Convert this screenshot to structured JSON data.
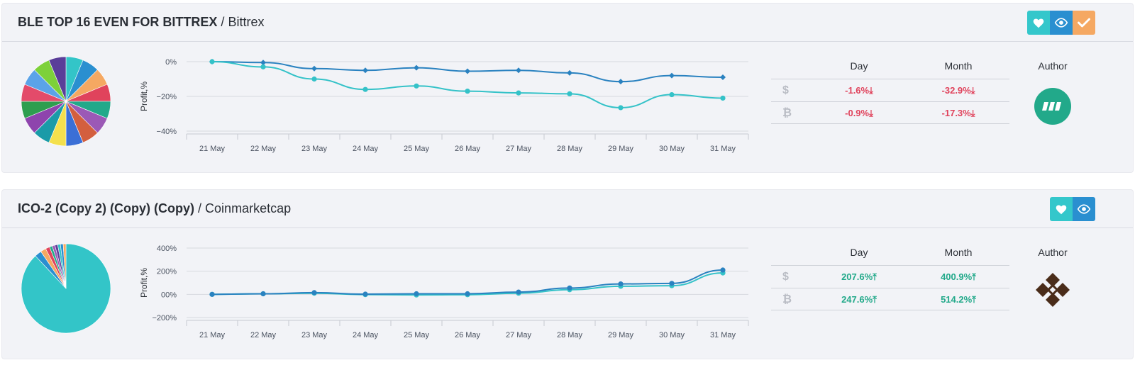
{
  "cards": [
    {
      "title": "BLE TOP 16 EVEN FOR BITTREX",
      "separator": "/",
      "exchange": "Bittrex",
      "buttons": [
        "like",
        "watch",
        "check"
      ],
      "pie_colors": [
        "#33c5c8",
        "#2a8fd0",
        "#f5a862",
        "#e0435c",
        "#22a98a",
        "#9b59b6",
        "#d35f3f",
        "#3b6fd6",
        "#f4e04d",
        "#1a9ba8",
        "#8e44ad",
        "#2e9e4f",
        "#e34b6a",
        "#5ba3e8",
        "#7dd13a",
        "#5a3e99"
      ],
      "stats": {
        "headers": {
          "day": "Day",
          "month": "Month",
          "author": "Author"
        },
        "usd_symbol": "$",
        "btc_symbol": "₿",
        "usd_day": "-1.6%⤓",
        "usd_month": "-32.9%⤓",
        "btc_day": "-0.9%⤓",
        "btc_month": "-17.3%⤓",
        "trend": "neg"
      },
      "avatar_color": "#22a98a",
      "chart_data": {
        "type": "line",
        "ylabel": "Profit,%",
        "x": [
          "21 May",
          "22 May",
          "23 May",
          "24 May",
          "25 May",
          "26 May",
          "27 May",
          "28 May",
          "29 May",
          "30 May",
          "31 May"
        ],
        "y_ticks": [
          0,
          -20,
          -40
        ],
        "y_tick_labels": [
          "0%",
          "−20%",
          "−40%"
        ],
        "ylim": [
          -40,
          0
        ],
        "series": [
          {
            "color": "#2a82c0",
            "values": [
              0,
              -0.5,
              -4,
              -5,
              -3.5,
              -5.5,
              -5,
              -6.5,
              -11.5,
              -8,
              -9
            ]
          },
          {
            "color": "#34c2c8",
            "values": [
              0,
              -3,
              -10,
              -16,
              -14,
              -17,
              -18,
              -18.5,
              -26.5,
              -19,
              -21
            ]
          }
        ]
      }
    },
    {
      "title": "ICO-2 (Copy 2) (Copy) (Copy)",
      "separator": "/",
      "exchange": "Coinmarketcap",
      "buttons": [
        "like",
        "watch"
      ],
      "pie_colors": [
        "#33c5c8",
        "#2a8fd0",
        "#f5a862",
        "#e0435c",
        "#22a98a",
        "#9b59b6",
        "#5a3e99"
      ],
      "stats": {
        "headers": {
          "day": "Day",
          "month": "Month",
          "author": "Author"
        },
        "usd_symbol": "$",
        "btc_symbol": "₿",
        "usd_day": "207.6%⤒",
        "usd_month": "400.9%⤒",
        "btc_day": "247.6%⤒",
        "btc_month": "514.2%⤒",
        "trend": "pos"
      },
      "avatar_color": "#4a2c1a",
      "chart_data": {
        "type": "line",
        "ylabel": "Profit,%",
        "x": [
          "21 May",
          "22 May",
          "23 May",
          "24 May",
          "25 May",
          "26 May",
          "27 May",
          "28 May",
          "29 May",
          "30 May",
          "31 May"
        ],
        "y_ticks": [
          400,
          200,
          0,
          -200
        ],
        "y_tick_labels": [
          "400%",
          "200%",
          "00%",
          "−200%"
        ],
        "ylim": [
          -200,
          400
        ],
        "series": [
          {
            "color": "#34c2c8",
            "values": [
              0,
              5,
              10,
              -2,
              -5,
              -3,
              10,
              40,
              70,
              75,
              185
            ]
          },
          {
            "color": "#2a82c0",
            "values": [
              0,
              5,
              15,
              2,
              5,
              5,
              20,
              55,
              90,
              95,
              210
            ]
          }
        ]
      }
    }
  ]
}
